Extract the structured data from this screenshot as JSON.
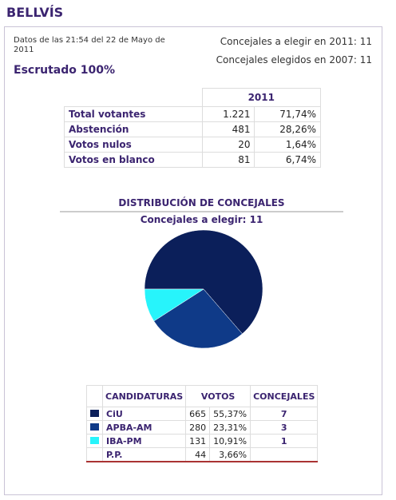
{
  "header": {
    "title": "BELLVÍS"
  },
  "info": {
    "date": "Datos de las 21:54  del 22 de Mayo de 2011",
    "seats_to_elect": "Concejales a elegir en 2011: 11",
    "seats_elected_2007": "Concejales elegidos en 2007: 11",
    "status": "Escrutado 100%"
  },
  "summary_table": {
    "year": "2011",
    "rows": [
      [
        "Total votantes",
        "1.221",
        "71,74%"
      ],
      [
        "Abstención",
        "481",
        "28,26%"
      ],
      [
        "Votos nulos",
        "20",
        "1,64%"
      ],
      [
        "Votos en blanco",
        "81",
        "6,74%"
      ]
    ]
  },
  "chart": {
    "type": "pie",
    "title": "DISTRIBUCIÓN DE CONCEJALES",
    "subtitle": "Concejales a elegir: 11"
  },
  "results_table": {
    "headers": [
      "CANDIDATURAS",
      "VOTOS",
      "CONCEJALES"
    ],
    "rows": [
      {
        "name": "CiU",
        "color": "#0b1f5a",
        "votes": 665,
        "percent": "55,37%",
        "seats": 7
      },
      {
        "name": "APBA-AM",
        "color": "#0f3a88",
        "votes": 280,
        "percent": "23,31%",
        "seats": 3
      },
      {
        "name": "IBA-PM",
        "color": "#27f4fb",
        "votes": 131,
        "percent": "10,91%",
        "seats": 1
      },
      {
        "name": "P.P.",
        "votes": 44,
        "percent": "3,66%"
      }
    ]
  }
}
